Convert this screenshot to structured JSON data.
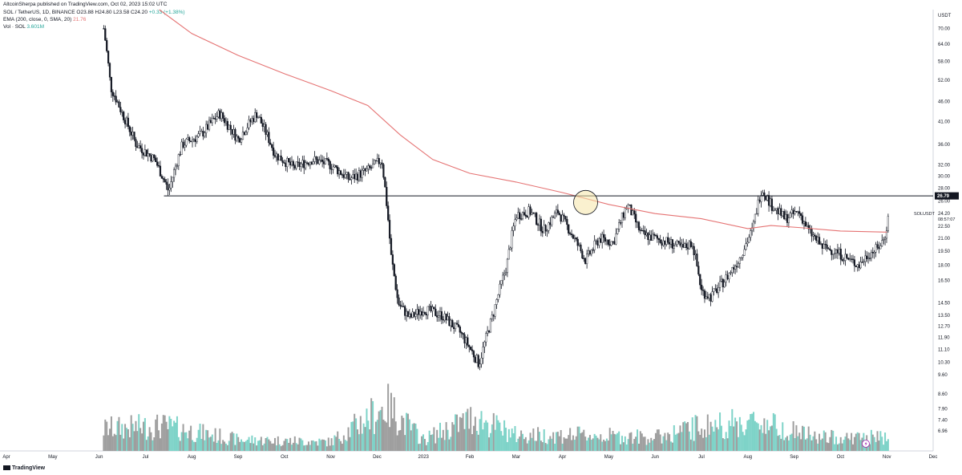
{
  "header": {
    "publisher": "AltcoinSherpa published on TradingView.com, Oct 02, 2023 15:02 UTC",
    "symbol": "SOL / TetherUS, 1D, BINANCE",
    "ohlc": "O23.88 H24.80 L23.58 C24.20",
    "change": "+0.33 (+1.38%)",
    "ema_label": "EMA (200, close, 0, SMA, 20)",
    "ema_value": "21.76",
    "vol_label": "Vol · SOL",
    "vol_value": "3.601M"
  },
  "axis": {
    "unit": "USDT"
  },
  "footer": {
    "brand": "TradingView"
  },
  "colors": {
    "candle": "#131722",
    "ema": "#e57373",
    "vol_up": "#7ed3c8",
    "vol_down": "#9e9e9e",
    "resistance": "#131722",
    "highlight": "#f5e6a8",
    "price_tag": "#131722"
  },
  "chart_data": {
    "type": "candlestick",
    "y_scale": "log",
    "ylim": [
      6.2,
      78
    ],
    "y_ticks": [
      "70.00",
      "64.00",
      "58.00",
      "52.00",
      "46.00",
      "41.00",
      "36.00",
      "32.00",
      "30.00",
      "28.00",
      "26.00",
      "22.50",
      "21.00",
      "19.50",
      "18.00",
      "16.50",
      "14.50",
      "13.50",
      "12.70",
      "11.90",
      "11.10",
      "10.30",
      "9.60",
      "8.60",
      "7.90",
      "7.40",
      "6.96"
    ],
    "x_ticks": [
      "Apr",
      "May",
      "Jun",
      "Jul",
      "Aug",
      "Sep",
      "Oct",
      "Nov",
      "Dec",
      "2023",
      "Feb",
      "Mar",
      "Apr",
      "May",
      "Jun",
      "Jul",
      "Aug",
      "Sep",
      "Oct",
      "Nov",
      "Dec"
    ],
    "resistance_level": 26.79,
    "resistance_label": "26.79",
    "last_price_label": "24.20",
    "last_price_symbol": "SOLUSDT",
    "countdown": "08:57:07",
    "highlight_circle": {
      "date_month_index": 12.5,
      "price": 25.8
    },
    "price_path": [
      {
        "m": 2.1,
        "p": 70
      },
      {
        "m": 2.25,
        "p": 50
      },
      {
        "m": 2.5,
        "p": 43
      },
      {
        "m": 2.8,
        "p": 36
      },
      {
        "m": 3.2,
        "p": 33
      },
      {
        "m": 3.5,
        "p": 27.5
      },
      {
        "m": 3.8,
        "p": 36
      },
      {
        "m": 4.2,
        "p": 38
      },
      {
        "m": 4.6,
        "p": 43
      },
      {
        "m": 5.0,
        "p": 37
      },
      {
        "m": 5.4,
        "p": 43
      },
      {
        "m": 5.8,
        "p": 34
      },
      {
        "m": 6.2,
        "p": 31.5
      },
      {
        "m": 6.6,
        "p": 33
      },
      {
        "m": 7.0,
        "p": 32
      },
      {
        "m": 7.4,
        "p": 29.5
      },
      {
        "m": 7.8,
        "p": 31
      },
      {
        "m": 8.1,
        "p": 33
      },
      {
        "m": 8.3,
        "p": 19
      },
      {
        "m": 8.45,
        "p": 14.5
      },
      {
        "m": 8.7,
        "p": 13.3
      },
      {
        "m": 9.0,
        "p": 14
      },
      {
        "m": 9.4,
        "p": 13.5
      },
      {
        "m": 9.8,
        "p": 12.2
      },
      {
        "m": 10.2,
        "p": 10.2
      },
      {
        "m": 10.5,
        "p": 13.5
      },
      {
        "m": 10.8,
        "p": 18
      },
      {
        "m": 11.0,
        "p": 24
      },
      {
        "m": 11.3,
        "p": 24.5
      },
      {
        "m": 11.6,
        "p": 22
      },
      {
        "m": 11.9,
        "p": 24.5
      },
      {
        "m": 12.2,
        "p": 21.5
      },
      {
        "m": 12.5,
        "p": 18.5
      },
      {
        "m": 12.8,
        "p": 21
      },
      {
        "m": 13.1,
        "p": 20.5
      },
      {
        "m": 13.4,
        "p": 25.5
      },
      {
        "m": 13.7,
        "p": 21.5
      },
      {
        "m": 14.0,
        "p": 21
      },
      {
        "m": 14.3,
        "p": 20.5
      },
      {
        "m": 14.6,
        "p": 19.8
      },
      {
        "m": 14.8,
        "p": 20.5
      },
      {
        "m": 15.0,
        "p": 15.5
      },
      {
        "m": 15.2,
        "p": 15
      },
      {
        "m": 15.5,
        "p": 16.5
      },
      {
        "m": 15.8,
        "p": 18.5
      },
      {
        "m": 16.1,
        "p": 22
      },
      {
        "m": 16.3,
        "p": 28
      },
      {
        "m": 16.5,
        "p": 25.5
      },
      {
        "m": 16.8,
        "p": 23.5
      },
      {
        "m": 17.1,
        "p": 24.5
      },
      {
        "m": 17.3,
        "p": 22
      },
      {
        "m": 17.6,
        "p": 20
      },
      {
        "m": 17.9,
        "p": 19.5
      },
      {
        "m": 18.2,
        "p": 18.5
      },
      {
        "m": 18.4,
        "p": 18
      },
      {
        "m": 18.6,
        "p": 19.2
      },
      {
        "m": 18.8,
        "p": 19.8
      },
      {
        "m": 18.95,
        "p": 21
      },
      {
        "m": 19.05,
        "p": 24.2
      }
    ],
    "ema_path": [
      {
        "m": 3.3,
        "p": 78
      },
      {
        "m": 4.0,
        "p": 68
      },
      {
        "m": 5.0,
        "p": 60
      },
      {
        "m": 6.0,
        "p": 54
      },
      {
        "m": 7.0,
        "p": 49
      },
      {
        "m": 7.8,
        "p": 45
      },
      {
        "m": 8.5,
        "p": 38
      },
      {
        "m": 9.2,
        "p": 33
      },
      {
        "m": 10.0,
        "p": 30.5
      },
      {
        "m": 11.0,
        "p": 29
      },
      {
        "m": 12.0,
        "p": 27.3
      },
      {
        "m": 13.0,
        "p": 25.5
      },
      {
        "m": 14.0,
        "p": 24.2
      },
      {
        "m": 15.0,
        "p": 23.5
      },
      {
        "m": 16.0,
        "p": 22.2
      },
      {
        "m": 16.5,
        "p": 22.6
      },
      {
        "m": 17.2,
        "p": 22.3
      },
      {
        "m": 18.0,
        "p": 21.9
      },
      {
        "m": 19.0,
        "p": 21.76
      }
    ],
    "volume_profile": [
      {
        "m": 0.0,
        "v": 0.15
      },
      {
        "m": 2.2,
        "v": 0.5
      },
      {
        "m": 3.4,
        "v": 0.55
      },
      {
        "m": 5.0,
        "v": 0.25
      },
      {
        "m": 7.0,
        "v": 0.2
      },
      {
        "m": 8.2,
        "v": 1.0
      },
      {
        "m": 9.0,
        "v": 0.25
      },
      {
        "m": 10.1,
        "v": 0.75
      },
      {
        "m": 11.0,
        "v": 0.35
      },
      {
        "m": 12.5,
        "v": 0.35
      },
      {
        "m": 14.0,
        "v": 0.3
      },
      {
        "m": 15.0,
        "v": 0.55
      },
      {
        "m": 16.3,
        "v": 0.65
      },
      {
        "m": 17.5,
        "v": 0.3
      },
      {
        "m": 19.0,
        "v": 0.3
      }
    ]
  }
}
